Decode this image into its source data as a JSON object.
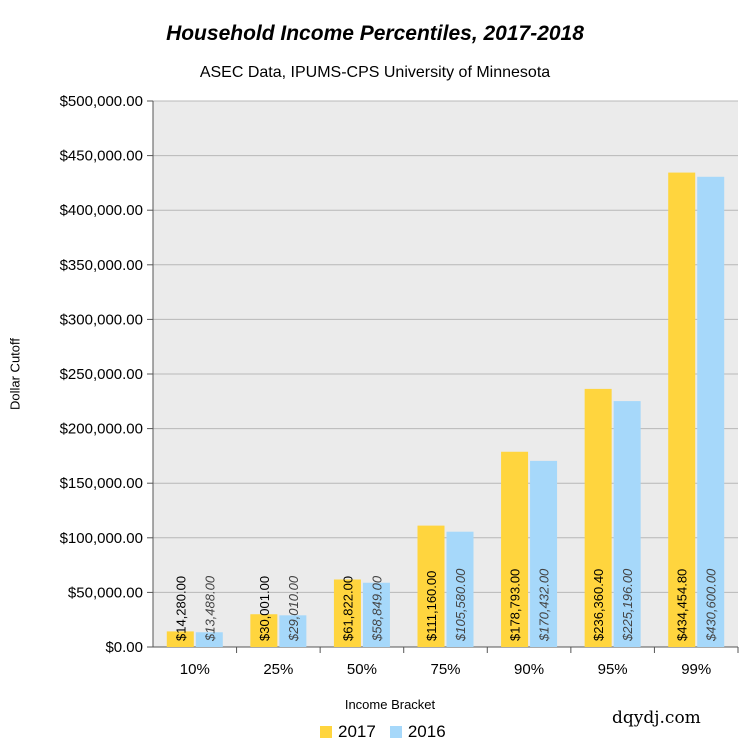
{
  "chart_data": {
    "type": "bar",
    "title": "Household Income Percentiles, 2017-2018",
    "subtitle": "ASEC Data, IPUMS-CPS University of Minnesota",
    "xlabel": "Income Bracket",
    "ylabel": "Dollar Cutoff",
    "categories": [
      "10%",
      "25%",
      "50%",
      "75%",
      "90%",
      "95%",
      "99%"
    ],
    "series": [
      {
        "name": "2017",
        "color": "#FFD53E",
        "values": [
          14280,
          30001,
          61822,
          111160,
          178793,
          236360.4,
          434454.8
        ],
        "labels": [
          "$14,280.00",
          "$30,001.00",
          "$61,822.00",
          "$111,160.00",
          "$178,793.00",
          "$236,360.40",
          "$434,454.80"
        ]
      },
      {
        "name": "2016",
        "color": "#A6D8FA",
        "values": [
          13488,
          29010,
          58849,
          105580,
          170432,
          225196,
          430600
        ],
        "labels": [
          "$13,488.00",
          "$29,010.00",
          "$58,849.00",
          "$105,580.00",
          "$170,432.00",
          "$225,196.00",
          "$430,600.00"
        ]
      }
    ],
    "ylim": [
      0,
      500000
    ],
    "yticks": [
      0,
      50000,
      100000,
      150000,
      200000,
      250000,
      300000,
      350000,
      400000,
      450000,
      500000
    ],
    "ytick_labels": [
      "$0.00",
      "$50,000.00",
      "$100,000.00",
      "$150,000.00",
      "$200,000.00",
      "$250,000.00",
      "$300,000.00",
      "$350,000.00",
      "$400,000.00",
      "$450,000.00",
      "$500,000.00"
    ],
    "grid": true,
    "legend_position": "bottom",
    "plot_background": "#EBEBEB"
  },
  "watermark": "dqydj.com"
}
